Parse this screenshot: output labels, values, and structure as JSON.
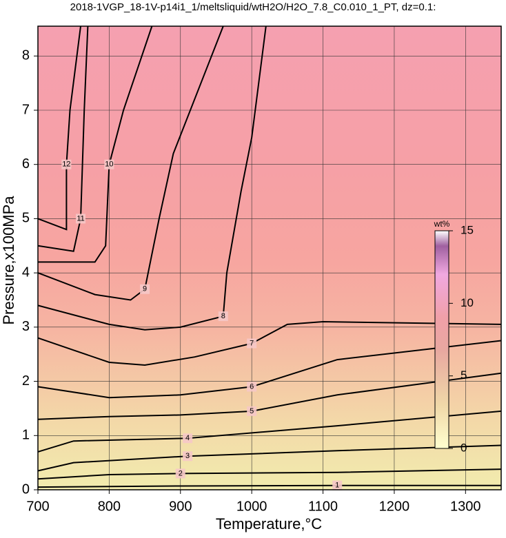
{
  "chart_data": {
    "type": "contour",
    "title": "2018-1VGP_18-1V-p14i1_1/meltsliquid/wtH2O/H2O_7.8_C0.010_1_PT, dz=0.1:",
    "x_label": "Temperature,°C",
    "y_label": "Pressure,x100MPa",
    "xlim": [
      700,
      1350
    ],
    "ylim": [
      0,
      8.55
    ],
    "xticks": [
      700,
      800,
      900,
      1000,
      1100,
      1200,
      1300
    ],
    "yticks": [
      0,
      1,
      2,
      3,
      4,
      5,
      6,
      7,
      8
    ],
    "grid": true,
    "contours": [
      {
        "level": 1,
        "x": [
          700,
          900,
          1120,
          1350
        ],
        "y": [
          0.05,
          0.07,
          0.08,
          0.08
        ]
      },
      {
        "level": 2,
        "x": [
          700,
          800,
          900,
          1120,
          1350
        ],
        "y": [
          0.2,
          0.28,
          0.3,
          0.32,
          0.38
        ]
      },
      {
        "level": 3,
        "x": [
          700,
          750,
          910,
          1120,
          1350
        ],
        "y": [
          0.35,
          0.5,
          0.62,
          0.72,
          0.82
        ]
      },
      {
        "level": 4,
        "x": [
          700,
          750,
          910,
          1120,
          1350
        ],
        "y": [
          0.7,
          0.9,
          0.95,
          1.18,
          1.45
        ]
      },
      {
        "level": 5,
        "x": [
          700,
          800,
          900,
          1000,
          1120,
          1350
        ],
        "y": [
          1.3,
          1.35,
          1.38,
          1.45,
          1.75,
          2.15
        ]
      },
      {
        "level": 6,
        "x": [
          700,
          800,
          900,
          1000,
          1120,
          1350
        ],
        "y": [
          1.9,
          1.7,
          1.75,
          1.9,
          2.4,
          2.75
        ]
      },
      {
        "level": 7,
        "x": [
          700,
          800,
          850,
          920,
          1000,
          1050,
          1100,
          1350
        ],
        "y": [
          2.8,
          2.35,
          2.3,
          2.45,
          2.7,
          3.05,
          3.1,
          3.05
        ]
      },
      {
        "level": 8,
        "x": [
          700,
          800,
          850,
          900,
          960,
          965,
          985,
          1000,
          1020
        ],
        "y": [
          3.4,
          3.05,
          2.95,
          3.0,
          3.2,
          4.0,
          5.5,
          6.5,
          8.55
        ]
      },
      {
        "level": 9,
        "x": [
          700,
          780,
          830,
          850,
          870,
          890,
          960
        ],
        "y": [
          4.0,
          3.6,
          3.5,
          3.7,
          5.0,
          6.2,
          8.55
        ]
      },
      {
        "level": 10,
        "x": [
          700,
          780,
          795,
          800,
          820,
          860
        ],
        "y": [
          4.2,
          4.2,
          4.5,
          6.0,
          7.0,
          8.55
        ]
      },
      {
        "level": 11,
        "x": [
          700,
          750,
          760,
          765,
          770
        ],
        "y": [
          4.5,
          4.4,
          5.0,
          7.0,
          8.55
        ]
      },
      {
        "level": 12,
        "x": [
          700,
          740,
          740,
          745,
          760
        ],
        "y": [
          5.0,
          4.8,
          6.0,
          7.0,
          8.55
        ]
      }
    ],
    "colorbar": {
      "label": "wt%",
      "lim": [
        0,
        15
      ],
      "ticks": [
        0,
        5,
        10,
        15
      ]
    }
  }
}
